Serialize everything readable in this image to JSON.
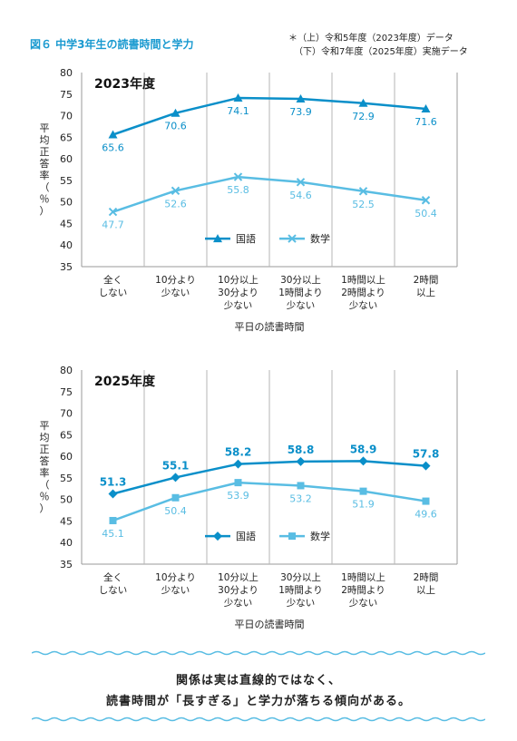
{
  "figure_title": "図６ 中学3年生の読書時間と学力",
  "notes": [
    "＊（上）令和5年度（2023年度）データ",
    "（下）令和7年度（2025年度）実施データ"
  ],
  "colors": {
    "japanese": "#0a8fc9",
    "math": "#59bde3",
    "grid": "#9a9a9a",
    "accent": "#1a9ad0"
  },
  "chart_data": [
    {
      "type": "line",
      "title": "2023年度",
      "categories": [
        [
          "全く",
          "しない"
        ],
        [
          "10分より",
          "少ない"
        ],
        [
          "10分以上",
          "30分より",
          "少ない"
        ],
        [
          "30分以上",
          "1時間より",
          "少ない"
        ],
        [
          "1時間以上",
          "2時間より",
          "少ない"
        ],
        [
          "2時間",
          "以上"
        ]
      ],
      "xlabel": "平日の読書時間",
      "ylabel": "平均正答率（％）",
      "ylim": [
        35,
        80
      ],
      "yticks": [
        35,
        40,
        45,
        50,
        55,
        60,
        65,
        70,
        75,
        80
      ],
      "legend_position": "bottom-center",
      "series": [
        {
          "name": "国語",
          "marker": "triangle",
          "values": [
            65.6,
            70.6,
            74.1,
            73.9,
            72.9,
            71.6
          ]
        },
        {
          "name": "数学",
          "marker": "cross",
          "values": [
            47.7,
            52.6,
            55.8,
            54.6,
            52.5,
            50.4
          ]
        }
      ]
    },
    {
      "type": "line",
      "title": "2025年度",
      "categories": [
        [
          "全く",
          "しない"
        ],
        [
          "10分より",
          "少ない"
        ],
        [
          "10分以上",
          "30分より",
          "少ない"
        ],
        [
          "30分以上",
          "1時間より",
          "少ない"
        ],
        [
          "1時間以上",
          "2時間より",
          "少ない"
        ],
        [
          "2時間",
          "以上"
        ]
      ],
      "xlabel": "平日の読書時間",
      "ylabel": "平均正答率（％）",
      "ylim": [
        35,
        80
      ],
      "yticks": [
        35,
        40,
        45,
        50,
        55,
        60,
        65,
        70,
        75,
        80
      ],
      "legend_position": "bottom-center",
      "series": [
        {
          "name": "国語",
          "marker": "diamond",
          "values": [
            51.3,
            55.1,
            58.2,
            58.8,
            58.9,
            57.8
          ]
        },
        {
          "name": "数学",
          "marker": "square",
          "values": [
            45.1,
            50.4,
            53.9,
            53.2,
            51.9,
            49.6
          ]
        }
      ]
    }
  ],
  "footer": [
    "関係は実は直線的ではなく、",
    "読書時間が「長すぎる」と学力が落ちる傾向がある。"
  ]
}
